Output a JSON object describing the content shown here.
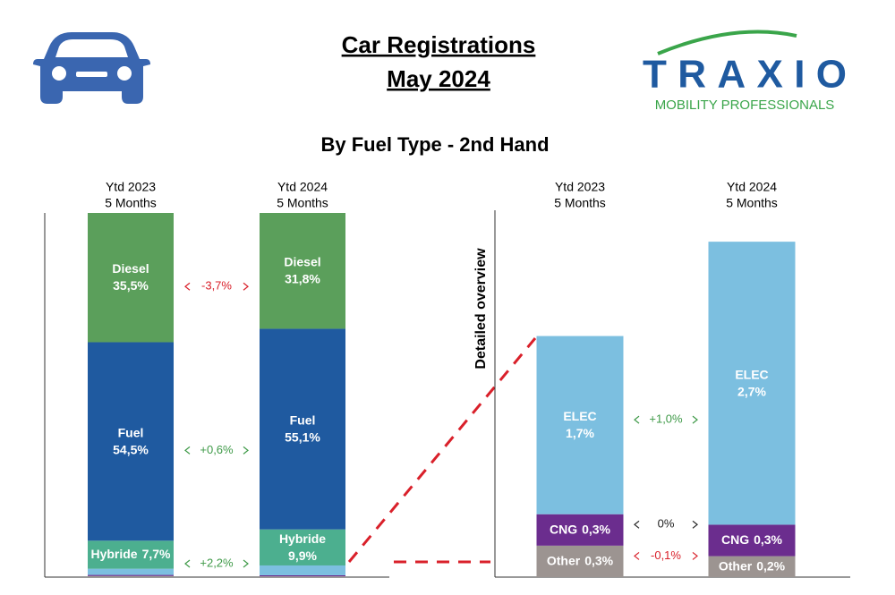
{
  "header": {
    "title_lines": [
      "Car Registrations",
      "May 2024"
    ],
    "logo": {
      "name": "TRAXIO",
      "tagline": "MOBILITY PROFESSIONALS"
    }
  },
  "chart_data": [
    {
      "type": "stacked-bar",
      "title": "By Fuel Type - 2nd Hand",
      "categories": [
        "Ytd 2023",
        "Ytd 2024"
      ],
      "category_note": "5 Months",
      "ylim": [
        0,
        100
      ],
      "series": [
        {
          "name": "Diesel",
          "color": "#5b9f5b",
          "values": [
            35.5,
            31.8
          ],
          "value_labels": [
            "35,5%",
            "31,8%"
          ],
          "change": -3.7,
          "change_label": "-3,7%"
        },
        {
          "name": "Fuel",
          "color": "#1f5aa0",
          "values": [
            54.5,
            55.1
          ],
          "value_labels": [
            "54,5%",
            "55,1%"
          ],
          "change": 0.6,
          "change_label": "+0,6%"
        },
        {
          "name": "Hybride",
          "color": "#4caf8f",
          "values": [
            7.7,
            9.9
          ],
          "value_labels": [
            "7,7%",
            "9,9%"
          ],
          "change": 2.2,
          "change_label": "+2,2%"
        }
      ]
    },
    {
      "type": "stacked-bar",
      "axis_label": "Detailed overview",
      "categories": [
        "Ytd 2023",
        "Ytd 2024"
      ],
      "category_note": "5 Months",
      "ylim": [
        0,
        3.5
      ],
      "series": [
        {
          "name": "ELEC",
          "color": "#7cbfe0",
          "values": [
            1.7,
            2.7
          ],
          "value_labels": [
            "1,7%",
            "2,7%"
          ],
          "change": 1.0,
          "change_label": "+1,0%"
        },
        {
          "name": "CNG",
          "color": "#6b2d8e",
          "values": [
            0.3,
            0.3
          ],
          "value_labels": [
            "0,3%",
            "0,3%"
          ],
          "change": 0,
          "change_label": "0%"
        },
        {
          "name": "Other",
          "color": "#9c9491",
          "values": [
            0.3,
            0.2
          ],
          "value_labels": [
            "0,3%",
            "0,2%"
          ],
          "change": -0.1,
          "change_label": "-0,1%"
        }
      ]
    }
  ]
}
